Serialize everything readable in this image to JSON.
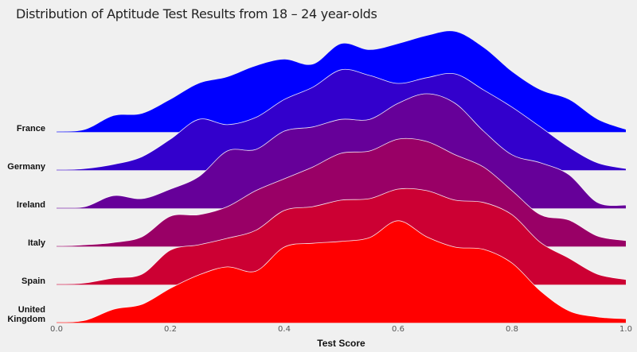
{
  "chart_data": {
    "type": "ridgeline",
    "title": "Distribution of Aptitude Test Results from 18 – 24 year-olds",
    "xlabel": "Test Score",
    "ylabel": "",
    "xlim": [
      0,
      1
    ],
    "x_ticks": [
      "0.0",
      "0.2",
      "0.4",
      "0.6",
      "0.8",
      "1.0"
    ],
    "grid": false,
    "x": [
      0,
      0.05,
      0.1,
      0.15,
      0.2,
      0.25,
      0.3,
      0.35,
      0.4,
      0.45,
      0.5,
      0.55,
      0.6,
      0.65,
      0.7,
      0.75,
      0.8,
      0.85,
      0.9,
      0.95,
      1.0
    ],
    "series": [
      {
        "name": "France",
        "label_lines": [
          "France"
        ],
        "color": "#0000ff",
        "values": [
          0,
          0.06,
          0.42,
          0.48,
          0.85,
          1.27,
          1.44,
          1.73,
          1.9,
          1.77,
          2.31,
          2.15,
          2.31,
          2.52,
          2.63,
          2.21,
          1.58,
          1.1,
          0.85,
          0.33,
          0.06
        ]
      },
      {
        "name": "Germany",
        "label_lines": [
          "Germany"
        ],
        "color": "#3300cc",
        "values": [
          0,
          0.04,
          0.15,
          0.35,
          0.81,
          1.33,
          1.19,
          1.38,
          1.85,
          2.17,
          2.63,
          2.48,
          2.27,
          2.42,
          2.52,
          2.1,
          1.65,
          1.13,
          0.6,
          0.19,
          0.04
        ]
      },
      {
        "name": "Ireland",
        "label_lines": [
          "Ireland"
        ],
        "color": "#660099",
        "values": [
          0,
          0.04,
          0.33,
          0.25,
          0.5,
          0.83,
          1.5,
          1.54,
          2.02,
          2.13,
          2.33,
          2.33,
          2.75,
          3.0,
          2.75,
          2.02,
          1.4,
          1.19,
          0.88,
          0.15,
          0.08
        ]
      },
      {
        "name": "Italy",
        "label_lines": [
          "Italy"
        ],
        "color": "#990066",
        "values": [
          0,
          0.04,
          0.1,
          0.25,
          0.79,
          0.83,
          1.04,
          1.46,
          1.77,
          2.08,
          2.44,
          2.5,
          2.81,
          2.75,
          2.4,
          2.08,
          1.46,
          0.83,
          0.69,
          0.27,
          0.15
        ]
      },
      {
        "name": "Spain",
        "label_lines": [
          "Spain"
        ],
        "color": "#cc0033",
        "values": [
          0,
          0.04,
          0.17,
          0.27,
          0.9,
          1.04,
          1.21,
          1.42,
          1.94,
          2.04,
          2.21,
          2.25,
          2.5,
          2.46,
          2.21,
          2.15,
          1.83,
          1.1,
          0.69,
          0.27,
          0.13
        ]
      },
      {
        "name": "United Kingdom",
        "label_lines": [
          "United",
          "Kingdom"
        ],
        "color": "#ff0000",
        "values": [
          0,
          0.06,
          0.35,
          0.48,
          0.9,
          1.25,
          1.46,
          1.35,
          1.98,
          2.08,
          2.13,
          2.23,
          2.67,
          2.25,
          1.98,
          1.92,
          1.56,
          0.83,
          0.31,
          0.15,
          0.1
        ]
      }
    ]
  }
}
